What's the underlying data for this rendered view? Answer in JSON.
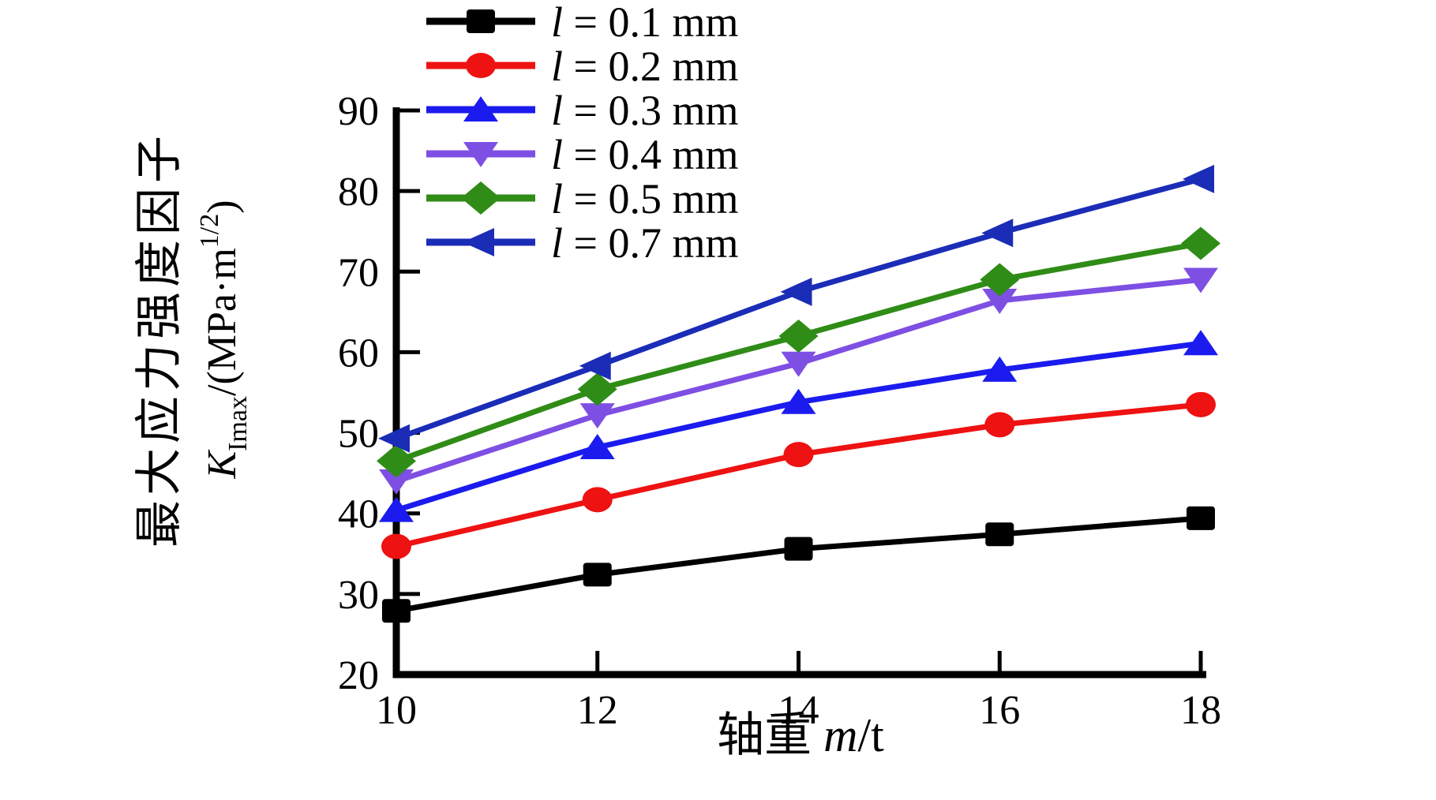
{
  "figure": {
    "background": "#ffffff"
  },
  "axes": {
    "x": {
      "ticks": [
        10,
        12,
        14,
        16,
        18
      ],
      "range": [
        10,
        18
      ],
      "label_prefix": "轴重 ",
      "label_var": "m",
      "label_suffix": "/t"
    },
    "y": {
      "ticks": [
        20,
        30,
        40,
        50,
        60,
        70,
        80,
        90
      ],
      "range": [
        20,
        90
      ],
      "label_cn": "最大应力强度因子",
      "formula": {
        "k": "K",
        "sub": "Imax",
        "mid": "/(MPa·m",
        "sup": "1/2",
        "close": ")"
      }
    }
  },
  "legend": {
    "items": [
      {
        "var": "l",
        "rest": " = 0.1 mm"
      },
      {
        "var": "l",
        "rest": " = 0.2 mm"
      },
      {
        "var": "l",
        "rest": " = 0.3 mm"
      },
      {
        "var": "l",
        "rest": " = 0.4 mm"
      },
      {
        "var": "l",
        "rest": " = 0.5 mm"
      },
      {
        "var": "l",
        "rest": " = 0.7 mm"
      }
    ]
  },
  "chart_data": {
    "type": "line",
    "x": [
      10,
      12,
      14,
      16,
      18
    ],
    "series": [
      {
        "name": "l = 0.1 mm",
        "marker": "square",
        "color": "#000000",
        "values": [
          27.9,
          32.4,
          35.6,
          37.4,
          39.4
        ]
      },
      {
        "name": "l = 0.2 mm",
        "marker": "circle",
        "color": "#ee1212",
        "values": [
          35.9,
          41.7,
          47.3,
          51.0,
          53.5
        ]
      },
      {
        "name": "l = 0.3 mm",
        "marker": "triangle-up",
        "color": "#1b1bef",
        "values": [
          40.4,
          48.2,
          53.8,
          57.8,
          61.1
        ]
      },
      {
        "name": "l = 0.4 mm",
        "marker": "triangle-down",
        "color": "#7e4fe3",
        "values": [
          44.0,
          52.2,
          58.6,
          66.4,
          69.0
        ]
      },
      {
        "name": "l = 0.5 mm",
        "marker": "diamond",
        "color": "#2f8c17",
        "values": [
          46.5,
          55.4,
          62.0,
          69.0,
          73.5
        ]
      },
      {
        "name": "l = 0.7 mm",
        "marker": "triangle-left",
        "color": "#1b2cb7",
        "values": [
          49.3,
          58.3,
          67.5,
          74.8,
          81.5
        ]
      }
    ],
    "xlabel": "轴重 m/t",
    "ylabel": "最大应力强度因子 K_Imax/(MPa·m^1/2)",
    "xlim": [
      10,
      18
    ],
    "ylim": [
      20,
      90
    ],
    "grid": false,
    "legend_position": "top-left"
  }
}
